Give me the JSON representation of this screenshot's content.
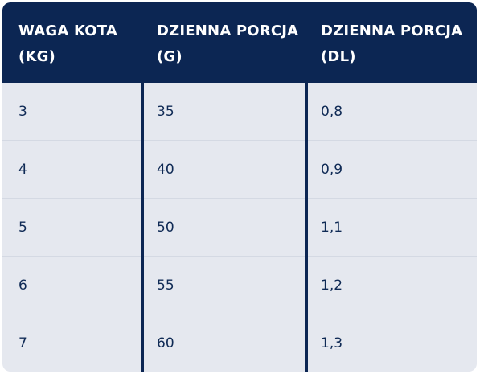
{
  "table": {
    "headers": [
      "WAGA KOTA\n(KG)",
      "DZIENNA PORCJA\n(G)",
      "DZIENNA PORCJA\n(DL)"
    ],
    "rows": [
      [
        "3",
        "35",
        "0,8"
      ],
      [
        "4",
        "40",
        "0,9"
      ],
      [
        "5",
        "50",
        "1,1"
      ],
      [
        "6",
        "55",
        "1,2"
      ],
      [
        "7",
        "60",
        "1,3"
      ]
    ]
  },
  "colors": {
    "header_bg": "#0c2653",
    "row_bg": "#e5e8ef",
    "text": "#0f2a55"
  }
}
